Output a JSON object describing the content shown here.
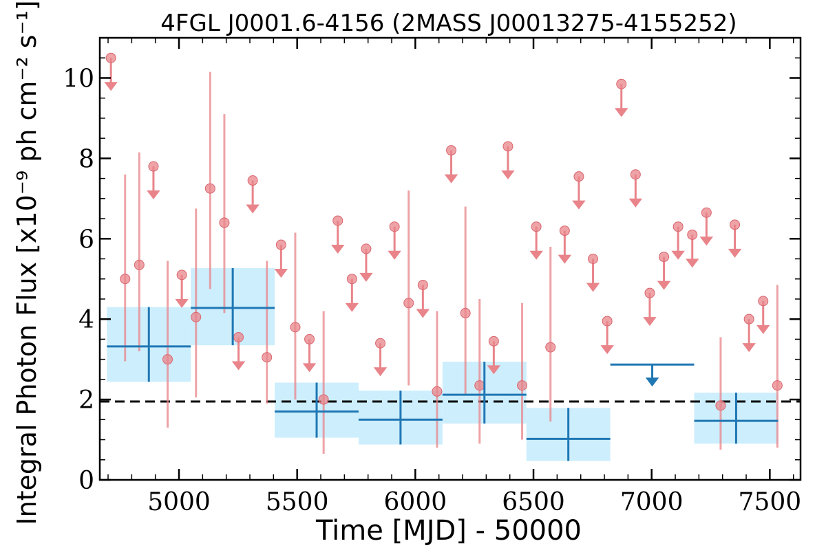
{
  "chart_data": {
    "type": "scatter",
    "title": "4FGL J0001.6-4156 (2MASS J00013275-4155252)",
    "xlabel": "Time [MJD] - 50000",
    "ylabel": "Integral Photon Flux [x10⁻⁹ ph cm⁻² s⁻¹]",
    "xlim": [
      4665,
      7630
    ],
    "ylim": [
      0,
      11
    ],
    "xticks": [
      5000,
      5500,
      6000,
      6500,
      7000,
      7500
    ],
    "xtick_labels": [
      "5000",
      "5500",
      "6000",
      "6500",
      "7000",
      "7500"
    ],
    "yticks": [
      0,
      2,
      4,
      6,
      8,
      10
    ],
    "ytick_labels": [
      "0",
      "2",
      "4",
      "6",
      "8",
      "10"
    ],
    "reference_line": {
      "y": 1.95,
      "style": "dashed"
    },
    "colors": {
      "detail": "#e8848a",
      "binned": "#1f77b4",
      "band": "#cdeefd",
      "reference": "#000000"
    },
    "series": [
      {
        "style": "short-bin points",
        "points": [
          {
            "x": 4712,
            "y": 10.5,
            "ul": true
          },
          {
            "x": 4772,
            "y": 5.0,
            "yerr": [
              2.05,
              2.6
            ]
          },
          {
            "x": 4832,
            "y": 5.35,
            "yerr": [
              2.15,
              2.8
            ]
          },
          {
            "x": 4892,
            "y": 7.8,
            "ul": true
          },
          {
            "x": 4952,
            "y": 3.0,
            "yerr": [
              1.7,
              2.45
            ]
          },
          {
            "x": 5012,
            "y": 5.1,
            "ul": true
          },
          {
            "x": 5072,
            "y": 4.05,
            "yerr": [
              2.0,
              2.7
            ]
          },
          {
            "x": 5132,
            "y": 7.25,
            "yerr": [
              2.5,
              2.9
            ]
          },
          {
            "x": 5192,
            "y": 6.4,
            "yerr": [
              2.25,
              2.7
            ]
          },
          {
            "x": 5252,
            "y": 3.55,
            "ul": true
          },
          {
            "x": 5312,
            "y": 7.45,
            "ul": true
          },
          {
            "x": 5372,
            "y": 3.05,
            "yerr": [
              1.15,
              2.4
            ]
          },
          {
            "x": 5432,
            "y": 5.85,
            "ul": true
          },
          {
            "x": 5492,
            "y": 3.8,
            "yerr": [
              1.8,
              2.35
            ]
          },
          {
            "x": 5552,
            "y": 3.5,
            "ul": true
          },
          {
            "x": 5612,
            "y": 2.0,
            "yerr": [
              1.35,
              2.2
            ]
          },
          {
            "x": 5672,
            "y": 6.45,
            "ul": true
          },
          {
            "x": 5732,
            "y": 5.0,
            "ul": true
          },
          {
            "x": 5792,
            "y": 5.75,
            "ul": true
          },
          {
            "x": 5852,
            "y": 3.4,
            "ul": true
          },
          {
            "x": 5912,
            "y": 6.3,
            "ul": true
          },
          {
            "x": 5972,
            "y": 4.4,
            "yerr": [
              2.05,
              2.8
            ]
          },
          {
            "x": 6032,
            "y": 4.85,
            "ul": true
          },
          {
            "x": 6092,
            "y": 2.2,
            "yerr": [
              1.4,
              2.0
            ]
          },
          {
            "x": 6152,
            "y": 8.2,
            "ul": true
          },
          {
            "x": 6212,
            "y": 4.15,
            "yerr": [
              2.05,
              2.65
            ]
          },
          {
            "x": 6272,
            "y": 2.35,
            "yerr": [
              1.45,
              2.15
            ]
          },
          {
            "x": 6332,
            "y": 3.45,
            "ul": true
          },
          {
            "x": 6392,
            "y": 8.3,
            "ul": true
          },
          {
            "x": 6452,
            "y": 2.35,
            "yerr": [
              1.35,
              2.05
            ]
          },
          {
            "x": 6512,
            "y": 6.3,
            "ul": true
          },
          {
            "x": 6572,
            "y": 3.3,
            "yerr": [
              1.85,
              2.5
            ]
          },
          {
            "x": 6632,
            "y": 6.2,
            "ul": true
          },
          {
            "x": 6692,
            "y": 7.55,
            "ul": true
          },
          {
            "x": 6752,
            "y": 5.5,
            "ul": true
          },
          {
            "x": 6812,
            "y": 3.95,
            "ul": true
          },
          {
            "x": 6872,
            "y": 9.85,
            "ul": true
          },
          {
            "x": 6932,
            "y": 7.6,
            "ul": true
          },
          {
            "x": 6992,
            "y": 4.65,
            "ul": true
          },
          {
            "x": 7052,
            "y": 5.55,
            "ul": true
          },
          {
            "x": 7112,
            "y": 6.3,
            "ul": true
          },
          {
            "x": 7172,
            "y": 6.1,
            "ul": true
          },
          {
            "x": 7232,
            "y": 6.65,
            "ul": true
          },
          {
            "x": 7292,
            "y": 1.85,
            "yerr": [
              1.1,
              1.7
            ]
          },
          {
            "x": 7352,
            "y": 6.35,
            "ul": true
          },
          {
            "x": 7412,
            "y": 4.0,
            "ul": true
          },
          {
            "x": 7472,
            "y": 4.45,
            "ul": true
          },
          {
            "x": 7532,
            "y": 2.35,
            "yerr": [
              1.55,
              2.5
            ]
          }
        ]
      },
      {
        "style": "long-bin points",
        "points": [
          {
            "x0": 4695,
            "x1": 5050,
            "y": 3.32,
            "yerr": [
              0.88,
              0.98
            ]
          },
          {
            "x0": 5050,
            "x1": 5405,
            "y": 4.28,
            "yerr": [
              0.93,
              0.99
            ]
          },
          {
            "x0": 5405,
            "x1": 5760,
            "y": 1.7,
            "yerr": [
              0.65,
              0.72
            ]
          },
          {
            "x0": 5760,
            "x1": 6115,
            "y": 1.5,
            "yerr": [
              0.62,
              0.72
            ]
          },
          {
            "x0": 6115,
            "x1": 6470,
            "y": 2.12,
            "yerr": [
              0.72,
              0.82
            ]
          },
          {
            "x0": 6470,
            "x1": 6825,
            "y": 1.02,
            "yerr": [
              0.55,
              0.77
            ]
          },
          {
            "x0": 6825,
            "x1": 7180,
            "y": 2.87,
            "ul": true
          },
          {
            "x0": 7180,
            "x1": 7535,
            "y": 1.47,
            "yerr": [
              0.57,
              0.7
            ]
          }
        ]
      }
    ]
  }
}
